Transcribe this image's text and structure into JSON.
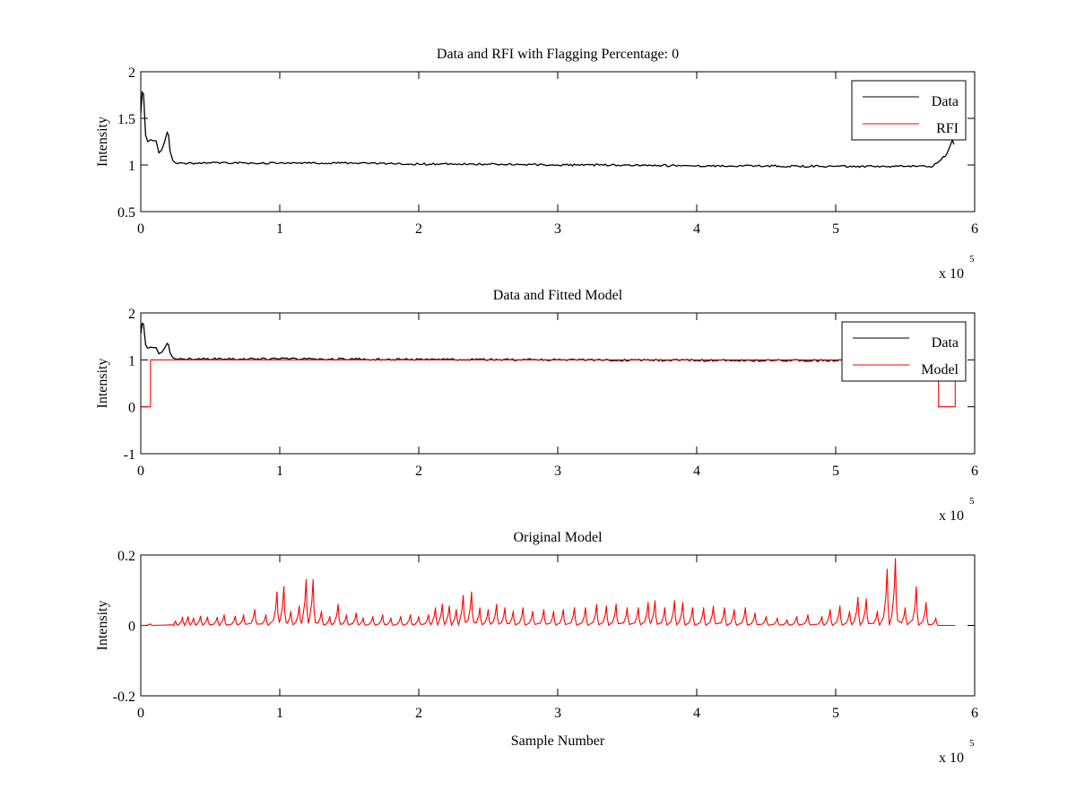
{
  "chart_data": [
    {
      "type": "line",
      "title": "Data and RFI with Flagging Percentage: 0",
      "xlabel": "",
      "ylabel": "Intensity",
      "xlim": [
        0,
        6
      ],
      "ylim": [
        0.5,
        2
      ],
      "x_ticks": [
        "0",
        "1",
        "2",
        "3",
        "4",
        "5",
        "6"
      ],
      "y_ticks": [
        "0.5",
        "1",
        "1.5",
        "2"
      ],
      "x_multiplier": "x 10",
      "x_exponent": "5",
      "legend": {
        "placement": "top-right",
        "entries": [
          "Data",
          "RFI"
        ]
      },
      "grid": false,
      "series": [
        {
          "name": "Data",
          "color": "#000000",
          "x": [
            0,
            0.01,
            0.02,
            0.035,
            0.05,
            0.07,
            0.09,
            0.11,
            0.13,
            0.15,
            0.17,
            0.19,
            0.2,
            0.21,
            0.23,
            0.25,
            0.3,
            0.5,
            1,
            1.5,
            2,
            2.5,
            3,
            3.5,
            4,
            4.5,
            5,
            5.5,
            5.7,
            5.76,
            5.8,
            5.84,
            5.85
          ],
          "y": [
            1.55,
            1.78,
            1.76,
            1.32,
            1.25,
            1.27,
            1.26,
            1.26,
            1.13,
            1.16,
            1.24,
            1.35,
            1.32,
            1.15,
            1.05,
            1.02,
            1.02,
            1.02,
            1.02,
            1.02,
            1.01,
            1.01,
            1.0,
            1.0,
            0.99,
            0.99,
            0.985,
            0.985,
            0.985,
            1.06,
            1.12,
            1.27,
            1.22
          ]
        },
        {
          "name": "RFI",
          "color": "#ff0000",
          "x": [],
          "y": []
        }
      ]
    },
    {
      "type": "line",
      "title": "Data and Fitted Model",
      "xlabel": "",
      "ylabel": "Intensity",
      "xlim": [
        0,
        6
      ],
      "ylim": [
        -1,
        2
      ],
      "x_ticks": [
        "0",
        "1",
        "2",
        "3",
        "4",
        "5",
        "6"
      ],
      "y_ticks": [
        "-1",
        "0",
        "1",
        "2"
      ],
      "x_multiplier": "x 10",
      "x_exponent": "5",
      "legend": {
        "placement": "top-right",
        "entries": [
          "Data",
          "Model"
        ]
      },
      "grid": false,
      "series": [
        {
          "name": "Data",
          "color": "#000000",
          "x": [
            0,
            0.01,
            0.02,
            0.035,
            0.05,
            0.07,
            0.09,
            0.11,
            0.13,
            0.15,
            0.17,
            0.19,
            0.2,
            0.21,
            0.23,
            0.25,
            0.3,
            1,
            2,
            3,
            4,
            5,
            5.72
          ],
          "y": [
            1.55,
            1.78,
            1.76,
            1.32,
            1.25,
            1.27,
            1.26,
            1.26,
            1.13,
            1.16,
            1.24,
            1.35,
            1.32,
            1.15,
            1.05,
            1.02,
            1.02,
            1.02,
            1.01,
            1.0,
            0.99,
            0.985,
            0.985
          ]
        },
        {
          "name": "Model",
          "color": "#ff0000",
          "x": [
            0,
            0.07,
            0.07,
            5.74,
            5.74,
            5.86,
            5.86
          ],
          "y": [
            0,
            0,
            1.0,
            1.0,
            0,
            0,
            1.0
          ]
        }
      ]
    },
    {
      "type": "line",
      "title": "Original Model",
      "xlabel": "Sample Number",
      "ylabel": "Intensity",
      "xlim": [
        0,
        6
      ],
      "ylim": [
        -0.2,
        0.2
      ],
      "x_ticks": [
        "0",
        "1",
        "2",
        "3",
        "4",
        "5",
        "6"
      ],
      "y_ticks": [
        "-0.2",
        "0",
        "0.2"
      ],
      "x_multiplier": "x 10",
      "x_exponent": "5",
      "grid": false,
      "series": [
        {
          "name": "",
          "color": "#ff0000",
          "baseline_range": [
            0,
            5.86
          ],
          "peaks": [
            {
              "x": 0.07,
              "y": 0.004
            },
            {
              "x": 0.25,
              "y": 0.012
            },
            {
              "x": 0.3,
              "y": 0.022
            },
            {
              "x": 0.34,
              "y": 0.025
            },
            {
              "x": 0.38,
              "y": 0.02
            },
            {
              "x": 0.43,
              "y": 0.026
            },
            {
              "x": 0.48,
              "y": 0.024
            },
            {
              "x": 0.55,
              "y": 0.023
            },
            {
              "x": 0.6,
              "y": 0.03
            },
            {
              "x": 0.68,
              "y": 0.026
            },
            {
              "x": 0.74,
              "y": 0.03
            },
            {
              "x": 0.82,
              "y": 0.045
            },
            {
              "x": 0.9,
              "y": 0.03
            },
            {
              "x": 0.98,
              "y": 0.095
            },
            {
              "x": 1.03,
              "y": 0.11
            },
            {
              "x": 1.08,
              "y": 0.04
            },
            {
              "x": 1.14,
              "y": 0.055
            },
            {
              "x": 1.19,
              "y": 0.13
            },
            {
              "x": 1.24,
              "y": 0.13
            },
            {
              "x": 1.3,
              "y": 0.04
            },
            {
              "x": 1.36,
              "y": 0.025
            },
            {
              "x": 1.42,
              "y": 0.06
            },
            {
              "x": 1.48,
              "y": 0.03
            },
            {
              "x": 1.55,
              "y": 0.035
            },
            {
              "x": 1.6,
              "y": 0.02
            },
            {
              "x": 1.67,
              "y": 0.025
            },
            {
              "x": 1.74,
              "y": 0.03
            },
            {
              "x": 1.8,
              "y": 0.02
            },
            {
              "x": 1.87,
              "y": 0.025
            },
            {
              "x": 1.94,
              "y": 0.03
            },
            {
              "x": 2.0,
              "y": 0.025
            },
            {
              "x": 2.07,
              "y": 0.03
            },
            {
              "x": 2.12,
              "y": 0.05
            },
            {
              "x": 2.17,
              "y": 0.06
            },
            {
              "x": 2.22,
              "y": 0.055
            },
            {
              "x": 2.27,
              "y": 0.045
            },
            {
              "x": 2.32,
              "y": 0.085
            },
            {
              "x": 2.38,
              "y": 0.095
            },
            {
              "x": 2.44,
              "y": 0.05
            },
            {
              "x": 2.5,
              "y": 0.045
            },
            {
              "x": 2.56,
              "y": 0.06
            },
            {
              "x": 2.62,
              "y": 0.05
            },
            {
              "x": 2.68,
              "y": 0.04
            },
            {
              "x": 2.75,
              "y": 0.05
            },
            {
              "x": 2.82,
              "y": 0.04
            },
            {
              "x": 2.9,
              "y": 0.045
            },
            {
              "x": 2.97,
              "y": 0.04
            },
            {
              "x": 3.04,
              "y": 0.045
            },
            {
              "x": 3.12,
              "y": 0.05
            },
            {
              "x": 3.2,
              "y": 0.05
            },
            {
              "x": 3.28,
              "y": 0.06
            },
            {
              "x": 3.35,
              "y": 0.055
            },
            {
              "x": 3.42,
              "y": 0.06
            },
            {
              "x": 3.5,
              "y": 0.05
            },
            {
              "x": 3.58,
              "y": 0.05
            },
            {
              "x": 3.65,
              "y": 0.065
            },
            {
              "x": 3.7,
              "y": 0.07
            },
            {
              "x": 3.77,
              "y": 0.05
            },
            {
              "x": 3.84,
              "y": 0.07
            },
            {
              "x": 3.9,
              "y": 0.065
            },
            {
              "x": 3.97,
              "y": 0.05
            },
            {
              "x": 4.05,
              "y": 0.05
            },
            {
              "x": 4.12,
              "y": 0.055
            },
            {
              "x": 4.2,
              "y": 0.05
            },
            {
              "x": 4.27,
              "y": 0.045
            },
            {
              "x": 4.35,
              "y": 0.05
            },
            {
              "x": 4.42,
              "y": 0.035
            },
            {
              "x": 4.5,
              "y": 0.025
            },
            {
              "x": 4.58,
              "y": 0.02
            },
            {
              "x": 4.65,
              "y": 0.015
            },
            {
              "x": 4.72,
              "y": 0.025
            },
            {
              "x": 4.8,
              "y": 0.03
            },
            {
              "x": 4.9,
              "y": 0.025
            },
            {
              "x": 4.96,
              "y": 0.045
            },
            {
              "x": 5.03,
              "y": 0.055
            },
            {
              "x": 5.1,
              "y": 0.04
            },
            {
              "x": 5.16,
              "y": 0.08
            },
            {
              "x": 5.22,
              "y": 0.075
            },
            {
              "x": 5.3,
              "y": 0.04
            },
            {
              "x": 5.37,
              "y": 0.16
            },
            {
              "x": 5.43,
              "y": 0.19
            },
            {
              "x": 5.5,
              "y": 0.05
            },
            {
              "x": 5.58,
              "y": 0.11
            },
            {
              "x": 5.65,
              "y": 0.065
            },
            {
              "x": 5.72,
              "y": 0.02
            }
          ]
        }
      ]
    }
  ]
}
